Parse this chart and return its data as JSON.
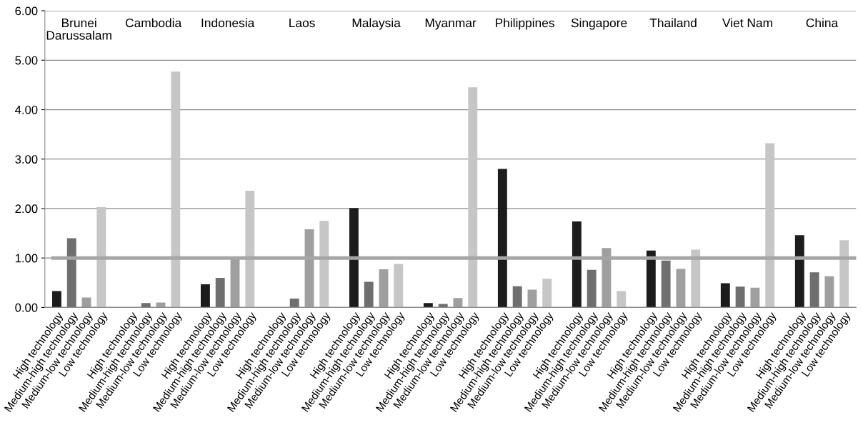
{
  "chart_data": {
    "type": "bar",
    "categories": [
      "High technology",
      "Medium-high technology",
      "Medium-low technology",
      "Low technology",
      null,
      "High technology",
      "Medium-high technology",
      "Medium-low technology",
      "Low technology",
      null,
      "High technology",
      "Medium-high technology",
      "Medium-low technology",
      "Low technology",
      null,
      "High technology",
      "Medium-high technology",
      "Medium-low technology",
      "Low technology",
      null,
      "High technology",
      "Medium-high technology",
      "Medium-low technology",
      "Low technology",
      null,
      "High technology",
      "Medium-high technology",
      "Medium-low technology",
      "Low technology",
      null,
      "High technology",
      "Medium-high technology",
      "Medium-low technology",
      "Low technology",
      null,
      "High technology",
      "Medium-high technology",
      "Medium-low technology",
      "Low technology",
      null,
      "High technology",
      "Medium-high technology",
      "Medium-low technology",
      "Low technology",
      null,
      "High technology",
      "Medium-high technology",
      "Medium-low technology",
      "Low technology",
      null,
      "High technology",
      "Medium-high technology",
      "Medium-low technology",
      "Low technology"
    ],
    "values": [
      0.33,
      1.4,
      0.2,
      2.03,
      null,
      0.0,
      0.09,
      0.1,
      4.77,
      null,
      0.47,
      0.6,
      1.0,
      2.36,
      null,
      0.0,
      0.18,
      1.58,
      1.75,
      null,
      2.01,
      0.52,
      0.77,
      0.88,
      null,
      0.09,
      0.07,
      0.19,
      4.45,
      null,
      2.8,
      0.43,
      0.36,
      0.58,
      null,
      1.74,
      0.76,
      1.2,
      0.33,
      null,
      1.15,
      0.95,
      0.78,
      1.17,
      null,
      0.49,
      0.42,
      0.4,
      3.32,
      null,
      1.46,
      0.71,
      0.63,
      1.36
    ],
    "colors": [
      "#1c1c1c",
      "#6f6f6f",
      "#9f9f9f",
      "#c6c6c6",
      null,
      "#1c1c1c",
      "#6f6f6f",
      "#9f9f9f",
      "#c6c6c6",
      null,
      "#1c1c1c",
      "#6f6f6f",
      "#9f9f9f",
      "#c6c6c6",
      null,
      "#1c1c1c",
      "#6f6f6f",
      "#9f9f9f",
      "#c6c6c6",
      null,
      "#1c1c1c",
      "#6f6f6f",
      "#9f9f9f",
      "#c6c6c6",
      null,
      "#1c1c1c",
      "#6f6f6f",
      "#9f9f9f",
      "#c6c6c6",
      null,
      "#1c1c1c",
      "#6f6f6f",
      "#9f9f9f",
      "#c6c6c6",
      null,
      "#1c1c1c",
      "#6f6f6f",
      "#9f9f9f",
      "#c6c6c6",
      null,
      "#1c1c1c",
      "#6f6f6f",
      "#9f9f9f",
      "#c6c6c6",
      null,
      "#1c1c1c",
      "#6f6f6f",
      "#9f9f9f",
      "#c6c6c6",
      null,
      "#1c1c1c",
      "#6f6f6f",
      "#9f9f9f",
      "#c6c6c6"
    ],
    "annotations": [
      "Brunei\nDarussalam",
      "Cambodia",
      "Indonesia",
      "Laos",
      "Malaysia",
      "Myanmar",
      "Philippines",
      "Singapore",
      "Thailand",
      "Viet Nam",
      "China"
    ],
    "ylim": [
      0,
      6
    ],
    "yticks": [
      {
        "value": 0,
        "label": "0.00"
      },
      {
        "value": 1,
        "label": "1.00"
      },
      {
        "value": 2,
        "label": "2.00"
      },
      {
        "value": 3,
        "label": "3.00"
      },
      {
        "value": 4,
        "label": "4.00"
      },
      {
        "value": 5,
        "label": "5.00"
      },
      {
        "value": 6,
        "label": "6.00"
      }
    ],
    "grid": "y",
    "ref_lines": [
      {
        "axis": "y",
        "value": 1,
        "label": null,
        "color": "#a6a6a6"
      }
    ]
  }
}
